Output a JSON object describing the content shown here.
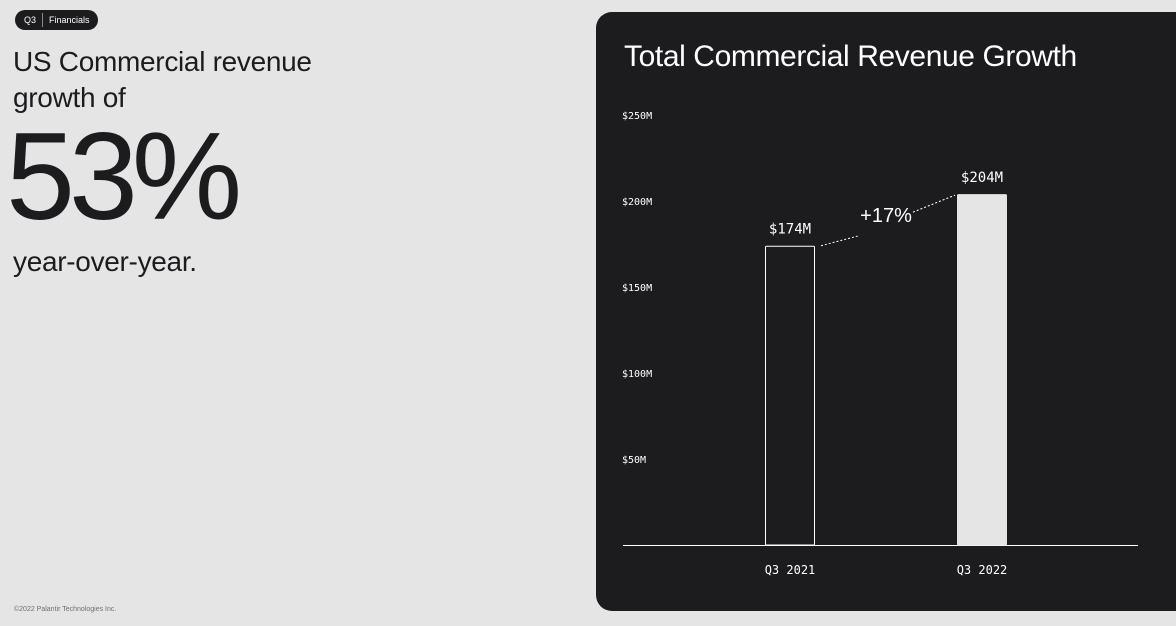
{
  "badge": {
    "period": "Q3",
    "section": "Financials"
  },
  "headline": {
    "intro": "US Commercial revenue growth of",
    "big_number": "53%",
    "outro": "year-over-year."
  },
  "footer": {
    "copyright": "©2022 Palantir Technologies Inc."
  },
  "colors": {
    "page_bg": "#e6e5e6",
    "panel_bg": "#1c1b1e",
    "bar_highlight": "#e6e5e6",
    "text_light": "#ffffff"
  },
  "chart_data": {
    "type": "bar",
    "title": "Total Commercial Revenue Growth",
    "categories": [
      "Q3 2021",
      "Q3 2022"
    ],
    "values": [
      174,
      204
    ],
    "value_labels": [
      "$174M",
      "$204M"
    ],
    "unit": "$M",
    "ylim": [
      0,
      250
    ],
    "y_ticks": [
      50,
      100,
      150,
      200,
      250
    ],
    "y_tick_labels": [
      "$50M",
      "$100M",
      "$150M",
      "$200M",
      "$250M"
    ],
    "grid": false,
    "bar_styles": [
      "outline",
      "filled"
    ],
    "annotation": {
      "text": "+17%",
      "style": "dotted-connector"
    }
  }
}
